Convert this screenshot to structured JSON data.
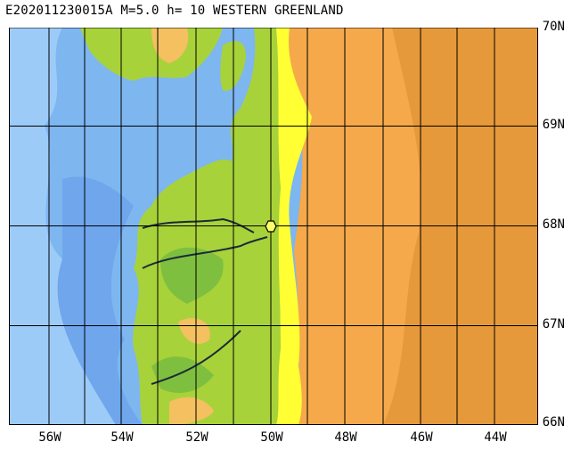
{
  "title": "E202011230015A M=5.0 h= 10 WESTERN GREENLAND",
  "latitudes": [
    "70N",
    "69N",
    "68N",
    "67N",
    "66N"
  ],
  "longitudes": [
    "56W",
    "54W",
    "52W",
    "50W",
    "48W",
    "46W",
    "44W"
  ],
  "epicenter": {
    "lat": 68.0,
    "lon": -50.1
  },
  "colors": {
    "deep_ocean": "#7EB6F0",
    "shelf_ocean": "#9DCBF8",
    "shallow_ocean": "#5B9BE6",
    "lowland_green": "#7FBF3F",
    "yellow_green": "#B7DB2F",
    "yellow": "#FFFF33",
    "tan_low": "#F4C060",
    "orange": "#F5A94B",
    "dark_orange": "#E6993A",
    "grid": "#000000"
  }
}
